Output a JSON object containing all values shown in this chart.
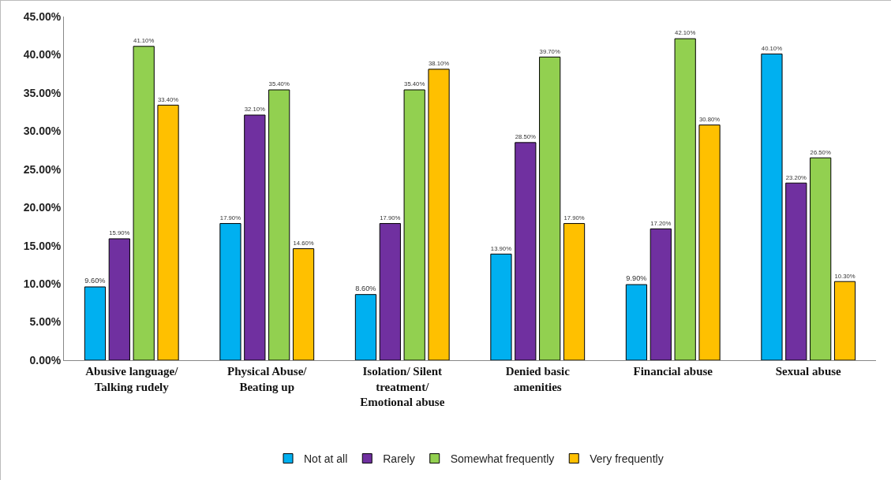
{
  "chart_data": {
    "type": "bar",
    "categories": [
      "Abusive language/\nTalking rudely",
      "Physical Abuse/\nBeating up",
      "Isolation/ Silent\ntreatment/\nEmotional abuse",
      "Denied basic\namenities",
      "Financial abuse",
      "Sexual abuse"
    ],
    "series": [
      {
        "name": "Not at all",
        "color": "#00b0f0",
        "values": [
          9.6,
          17.9,
          8.6,
          13.9,
          9.9,
          40.1
        ],
        "value_labels": [
          "9.60%",
          "17.90%",
          "8.60%",
          "13.90%",
          "9.90%",
          "40.10%"
        ]
      },
      {
        "name": "Rarely",
        "color": "#7030a0",
        "values": [
          15.9,
          32.1,
          17.9,
          28.5,
          17.2,
          23.2
        ],
        "value_labels": [
          "15.90%",
          "32.10%",
          "17.90%",
          "28.50%",
          "17.20%",
          "23.20%"
        ]
      },
      {
        "name": "Somewhat frequently",
        "color": "#92d050",
        "values": [
          41.1,
          35.4,
          35.4,
          39.7,
          42.1,
          26.5
        ],
        "value_labels": [
          "41.10%",
          "35.40%",
          "35.40%",
          "39.70%",
          "42.10%",
          "26.50%"
        ]
      },
      {
        "name": "Very frequently",
        "color": "#ffc000",
        "values": [
          33.4,
          14.6,
          38.1,
          17.9,
          30.8,
          10.3
        ],
        "value_labels": [
          "33.40%",
          "14.60%",
          "38.10%",
          "17.90%",
          "30.80%",
          "10.30%"
        ]
      }
    ],
    "ylim": [
      0,
      45
    ],
    "yticks": [
      {
        "value": 0,
        "label": "0.00%"
      },
      {
        "value": 5,
        "label": "5.00%"
      },
      {
        "value": 10,
        "label": "10.00%"
      },
      {
        "value": 15,
        "label": "15.00%"
      },
      {
        "value": 20,
        "label": "20.00%"
      },
      {
        "value": 25,
        "label": "25.00%"
      },
      {
        "value": 30,
        "label": "30.00%"
      },
      {
        "value": 35,
        "label": "35.00%"
      },
      {
        "value": 40,
        "label": "40.00%"
      },
      {
        "value": 45,
        "label": "45.00%"
      }
    ],
    "grid": false,
    "legend": "bottom"
  }
}
